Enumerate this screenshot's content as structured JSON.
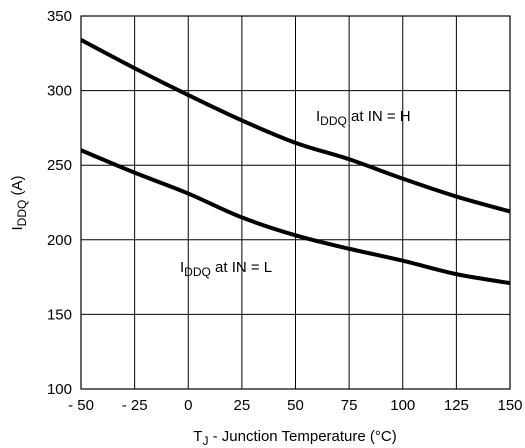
{
  "chart_data": {
    "type": "line",
    "xlabel": {
      "main": "T",
      "sub": "J",
      "rest": " - Junction Temperature (°C)"
    },
    "ylabel": {
      "main": "I",
      "sub": "DDQ",
      "rest": "   (A)"
    },
    "xlim": [
      -50,
      150
    ],
    "ylim": [
      100,
      350
    ],
    "x_ticks": [
      -50,
      -25,
      0,
      25,
      50,
      75,
      100,
      125,
      150
    ],
    "x_tick_labels": [
      "- 50",
      "- 25",
      "0",
      "25",
      "50",
      "75",
      "100",
      "125",
      "150"
    ],
    "y_ticks": [
      100,
      150,
      200,
      250,
      300,
      350
    ],
    "y_tick_labels": [
      "100",
      "150",
      "200",
      "250",
      "300",
      "350"
    ],
    "grid": true,
    "series": [
      {
        "label": {
          "main": "I",
          "sub": "DDQ",
          "rest": " at IN = H"
        },
        "x": [
          -50,
          -25,
          0,
          25,
          50,
          75,
          100,
          125,
          150
        ],
        "y": [
          334,
          315,
          297,
          280,
          265,
          254,
          241,
          229,
          219
        ]
      },
      {
        "label": {
          "main": "I",
          "sub": "DDQ",
          "rest": " at IN = L"
        },
        "x": [
          -50,
          -25,
          0,
          25,
          50,
          75,
          100,
          125,
          150
        ],
        "y": [
          260,
          245,
          231,
          215,
          203,
          194,
          186,
          177,
          171
        ]
      }
    ]
  }
}
